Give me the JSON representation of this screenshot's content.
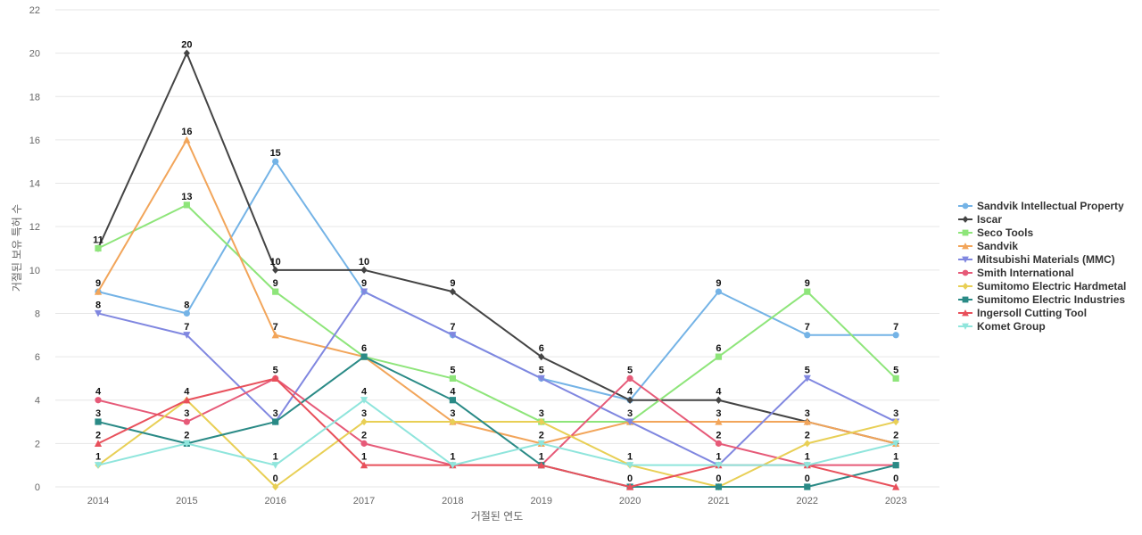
{
  "chart_data": {
    "type": "line",
    "title": "",
    "xlabel": "거절된 연도",
    "ylabel": "거절된 보유 특허 수",
    "ylim": [
      0,
      22
    ],
    "yticks": [
      0,
      2,
      4,
      6,
      8,
      10,
      12,
      14,
      16,
      18,
      20,
      22
    ],
    "grid": true,
    "legend_position": "right",
    "x": [
      "2014",
      "2015",
      "2016",
      "2017",
      "2018",
      "2019",
      "2020",
      "2021",
      "2022",
      "2023"
    ],
    "series": [
      {
        "name": "Sandvik Intellectual Property",
        "color": "#74b3e6",
        "marker": "circle",
        "values": [
          9,
          8,
          15,
          9,
          7,
          5,
          4,
          9,
          7,
          7
        ]
      },
      {
        "name": "Iscar",
        "color": "#444444",
        "marker": "diamond",
        "values": [
          11,
          20,
          10,
          10,
          9,
          6,
          4,
          4,
          3,
          2
        ]
      },
      {
        "name": "Seco Tools",
        "color": "#8ee57a",
        "marker": "square",
        "values": [
          11,
          13,
          9,
          6,
          5,
          3,
          3,
          6,
          9,
          5
        ]
      },
      {
        "name": "Sandvik",
        "color": "#f2a55a",
        "marker": "triangle",
        "values": [
          9,
          16,
          7,
          6,
          3,
          2,
          3,
          3,
          3,
          2
        ]
      },
      {
        "name": "Mitsubishi Materials (MMC)",
        "color": "#8087e0",
        "marker": "triangle-down",
        "values": [
          8,
          7,
          3,
          9,
          7,
          5,
          3,
          1,
          5,
          3
        ]
      },
      {
        "name": "Smith International",
        "color": "#e65a78",
        "marker": "circle",
        "values": [
          4,
          3,
          5,
          2,
          1,
          1,
          5,
          2,
          1,
          1
        ]
      },
      {
        "name": "Sumitomo Electric Hardmetal",
        "color": "#e8cf55",
        "marker": "diamond",
        "values": [
          1,
          4,
          0,
          3,
          3,
          3,
          1,
          0,
          2,
          3
        ]
      },
      {
        "name": "Sumitomo Electric Industries",
        "color": "#2a8a86",
        "marker": "square",
        "values": [
          3,
          2,
          3,
          6,
          4,
          1,
          0,
          0,
          0,
          1
        ]
      },
      {
        "name": "Ingersoll Cutting Tool",
        "color": "#e8505b",
        "marker": "triangle",
        "values": [
          2,
          4,
          5,
          1,
          1,
          1,
          0,
          1,
          1,
          0
        ]
      },
      {
        "name": "Komet Group",
        "color": "#8fe5dc",
        "marker": "triangle-down",
        "values": [
          1,
          2,
          1,
          4,
          1,
          2,
          1,
          1,
          1,
          2
        ]
      }
    ],
    "data_labels": [
      {
        "x": "2014",
        "value": 11
      },
      {
        "x": "2014",
        "value": 9
      },
      {
        "x": "2014",
        "value": 8
      },
      {
        "x": "2014",
        "value": 4
      },
      {
        "x": "2014",
        "value": 3
      },
      {
        "x": "2014",
        "value": 2
      },
      {
        "x": "2014",
        "value": 1
      },
      {
        "x": "2015",
        "value": 20
      },
      {
        "x": "2015",
        "value": 16
      },
      {
        "x": "2015",
        "value": 13
      },
      {
        "x": "2015",
        "value": 8
      },
      {
        "x": "2015",
        "value": 7
      },
      {
        "x": "2015",
        "value": 4
      },
      {
        "x": "2015",
        "value": 3
      },
      {
        "x": "2015",
        "value": 2
      },
      {
        "x": "2016",
        "value": 15
      },
      {
        "x": "2016",
        "value": 10
      },
      {
        "x": "2016",
        "value": 9
      },
      {
        "x": "2016",
        "value": 7
      },
      {
        "x": "2016",
        "value": 5
      },
      {
        "x": "2016",
        "value": 3
      },
      {
        "x": "2016",
        "value": 1
      },
      {
        "x": "2016",
        "value": 0
      },
      {
        "x": "2017",
        "value": 10
      },
      {
        "x": "2017",
        "value": 9
      },
      {
        "x": "2017",
        "value": 6
      },
      {
        "x": "2017",
        "value": 4
      },
      {
        "x": "2017",
        "value": 3
      },
      {
        "x": "2017",
        "value": 2
      },
      {
        "x": "2017",
        "value": 1
      },
      {
        "x": "2018",
        "value": 9
      },
      {
        "x": "2018",
        "value": 7
      },
      {
        "x": "2018",
        "value": 5
      },
      {
        "x": "2018",
        "value": 4
      },
      {
        "x": "2018",
        "value": 3
      },
      {
        "x": "2018",
        "value": 1
      },
      {
        "x": "2019",
        "value": 6
      },
      {
        "x": "2019",
        "value": 5
      },
      {
        "x": "2019",
        "value": 3
      },
      {
        "x": "2019",
        "value": 2
      },
      {
        "x": "2019",
        "value": 1
      },
      {
        "x": "2020",
        "value": 5
      },
      {
        "x": "2020",
        "value": 4
      },
      {
        "x": "2020",
        "value": 3
      },
      {
        "x": "2020",
        "value": 1
      },
      {
        "x": "2020",
        "value": 0
      },
      {
        "x": "2021",
        "value": 9
      },
      {
        "x": "2021",
        "value": 6
      },
      {
        "x": "2021",
        "value": 4
      },
      {
        "x": "2021",
        "value": 3
      },
      {
        "x": "2021",
        "value": 2
      },
      {
        "x": "2021",
        "value": 1
      },
      {
        "x": "2021",
        "value": 0
      },
      {
        "x": "2022",
        "value": 9
      },
      {
        "x": "2022",
        "value": 7
      },
      {
        "x": "2022",
        "value": 5
      },
      {
        "x": "2022",
        "value": 3
      },
      {
        "x": "2022",
        "value": 2
      },
      {
        "x": "2022",
        "value": 1
      },
      {
        "x": "2022",
        "value": 0
      },
      {
        "x": "2023",
        "value": 7
      },
      {
        "x": "2023",
        "value": 5
      },
      {
        "x": "2023",
        "value": 3
      },
      {
        "x": "2023",
        "value": 2
      },
      {
        "x": "2023",
        "value": 1
      },
      {
        "x": "2023",
        "value": 0
      }
    ]
  }
}
